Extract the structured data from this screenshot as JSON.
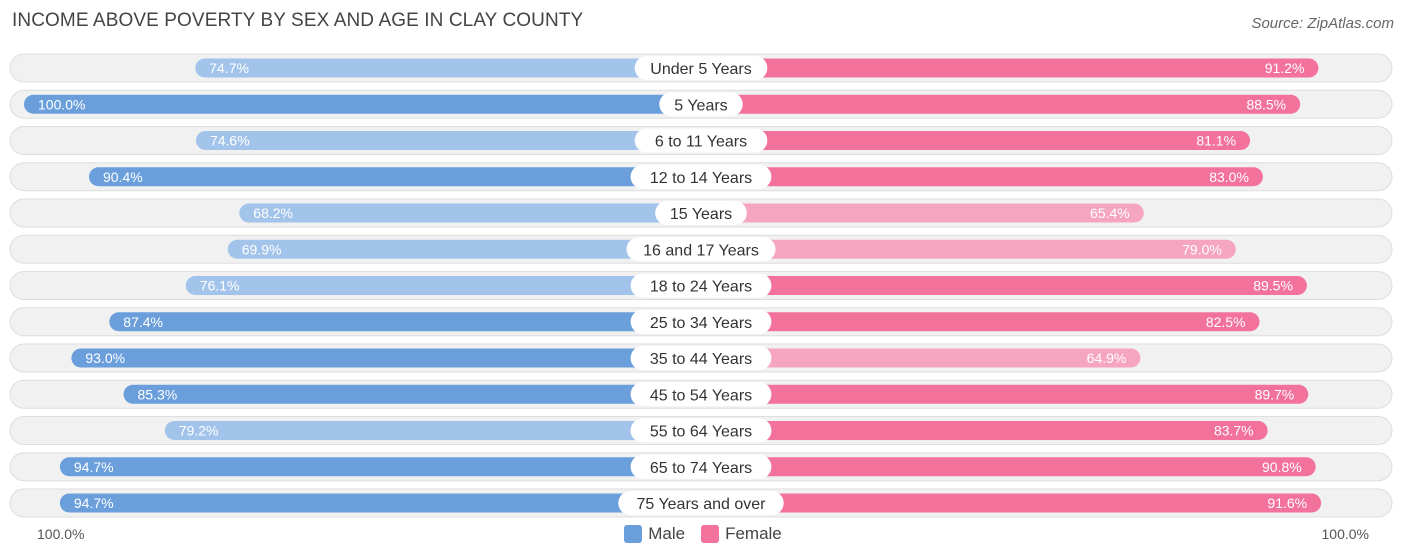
{
  "header": {
    "title": "INCOME ABOVE POVERTY BY SEX AND AGE IN CLAY COUNTY",
    "source": "Source: ZipAtlas.com"
  },
  "colors": {
    "male_strong": "#6a9fdc",
    "male_light": "#a3c4ea",
    "female_strong": "#f2729c",
    "female_light": "#f6a5c0",
    "track": "#f1f1f1",
    "track_border": "#dedede"
  },
  "axis": {
    "left_label": "100.0%",
    "right_label": "100.0%"
  },
  "legend": {
    "male": "Male",
    "female": "Female"
  },
  "chart_data": {
    "type": "bar",
    "orientation": "horizontal-diverging",
    "title": "INCOME ABOVE POVERTY BY SEX AND AGE IN CLAY COUNTY",
    "xlim": [
      0,
      100
    ],
    "categories": [
      "Under 5 Years",
      "5 Years",
      "6 to 11 Years",
      "12 to 14 Years",
      "15 Years",
      "16 and 17 Years",
      "18 to 24 Years",
      "25 to 34 Years",
      "35 to 44 Years",
      "45 to 54 Years",
      "55 to 64 Years",
      "65 to 74 Years",
      "75 Years and over"
    ],
    "series": [
      {
        "name": "Male",
        "values": [
          74.7,
          100.0,
          74.6,
          90.4,
          68.2,
          69.9,
          76.1,
          87.4,
          93.0,
          85.3,
          79.2,
          94.7,
          94.7
        ],
        "labels": [
          "74.7%",
          "100.0%",
          "74.6%",
          "90.4%",
          "68.2%",
          "69.9%",
          "76.1%",
          "87.4%",
          "93.0%",
          "85.3%",
          "79.2%",
          "94.7%",
          "94.7%"
        ]
      },
      {
        "name": "Female",
        "values": [
          91.2,
          88.5,
          81.1,
          83.0,
          65.4,
          79.0,
          89.5,
          82.5,
          64.9,
          89.7,
          83.7,
          90.8,
          91.6
        ],
        "labels": [
          "91.2%",
          "88.5%",
          "81.1%",
          "83.0%",
          "65.4%",
          "79.0%",
          "89.5%",
          "82.5%",
          "64.9%",
          "89.7%",
          "83.7%",
          "90.8%",
          "91.6%"
        ]
      }
    ]
  }
}
